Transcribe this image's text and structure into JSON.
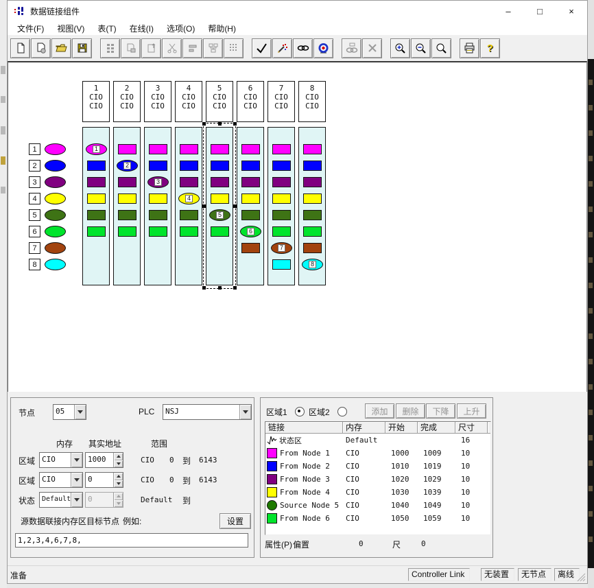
{
  "window": {
    "title": "数据链接组件",
    "minimize": "–",
    "maximize": "□",
    "close": "×"
  },
  "menu": {
    "items": [
      {
        "name": "file",
        "label": "文件(F)"
      },
      {
        "name": "view",
        "label": "视图(V)"
      },
      {
        "name": "table",
        "label": "表(T)"
      },
      {
        "name": "online",
        "label": "在线(I)"
      },
      {
        "name": "options",
        "label": "选项(O)"
      },
      {
        "name": "help",
        "label": "帮助(H)"
      }
    ]
  },
  "toolbar": {
    "icons": [
      "new-file",
      "report-page",
      "open-folder",
      "save",
      "datalink-table",
      "paste-table",
      "export-table",
      "cut",
      "merge-rows",
      "node-tree",
      "grid",
      "validate-check",
      "wizard",
      "auto-setup-link",
      "online-target",
      "manual-link",
      "delete",
      "zoom-in",
      "zoom-out",
      "zoom",
      "print",
      "help"
    ]
  },
  "canvas": {
    "row_colors": {
      "1": "#ff00ff",
      "2": "#0000ff",
      "3": "#800080",
      "4": "#ffff00",
      "5": "#3e7315",
      "6": "#00e42c",
      "7": "#a2430e",
      "8": "#00ffff"
    },
    "legend": [
      {
        "num": "1"
      },
      {
        "num": "2"
      },
      {
        "num": "3"
      },
      {
        "num": "4"
      },
      {
        "num": "5"
      },
      {
        "num": "6"
      },
      {
        "num": "7"
      },
      {
        "num": "8"
      }
    ],
    "columns": [
      {
        "num": "1",
        "mem1": "CIO",
        "mem2": "CIO",
        "rows": [
          1,
          2,
          3,
          4,
          5,
          6
        ],
        "own": 1,
        "selected": false
      },
      {
        "num": "2",
        "mem1": "CIO",
        "mem2": "CIO",
        "rows": [
          1,
          2,
          3,
          4,
          5,
          6
        ],
        "own": 2,
        "selected": false
      },
      {
        "num": "3",
        "mem1": "CIO",
        "mem2": "CIO",
        "rows": [
          1,
          2,
          3,
          4,
          5,
          6
        ],
        "own": 3,
        "selected": false
      },
      {
        "num": "4",
        "mem1": "CIO",
        "mem2": "CIO",
        "rows": [
          1,
          2,
          3,
          4,
          5,
          6
        ],
        "own": 4,
        "selected": false
      },
      {
        "num": "5",
        "mem1": "CIO",
        "mem2": "CIO",
        "rows": [
          1,
          2,
          3,
          4,
          5,
          6
        ],
        "own": 5,
        "selected": true
      },
      {
        "num": "6",
        "mem1": "CIO",
        "mem2": "CIO",
        "rows": [
          1,
          2,
          3,
          4,
          5,
          6,
          7
        ],
        "own": 6,
        "selected": false
      },
      {
        "num": "7",
        "mem1": "CIO",
        "mem2": "CIO",
        "rows": [
          1,
          2,
          3,
          4,
          5,
          6,
          7,
          8
        ],
        "own": 7,
        "selected": false
      },
      {
        "num": "8",
        "mem1": "CIO",
        "mem2": "CIO",
        "rows": [
          1,
          2,
          3,
          4,
          5,
          6,
          7,
          8
        ],
        "own": 8,
        "selected": false
      }
    ]
  },
  "left_panel": {
    "node_label": "节点",
    "node_value": "05",
    "plc_label": "PLC",
    "plc_value": "NSJ",
    "headers": {
      "memory": "内存",
      "address": "其实地址",
      "range": "范围"
    },
    "rows": [
      {
        "label": "区域",
        "memory": "CIO",
        "value": "1000",
        "range_mem": "CIO",
        "range_from": "0",
        "to_label": "到",
        "range_to": "6143"
      },
      {
        "label": "区域",
        "memory": "CIO",
        "value": "0",
        "range_mem": "CIO",
        "range_from": "0",
        "to_label": "到",
        "range_to": "6143"
      },
      {
        "label": "状态",
        "memory": "Default",
        "value": "0",
        "range_mem": "Default",
        "range_from": "",
        "to_label": "到",
        "range_to": ""
      }
    ],
    "target_label": "源数据联接内存区目标节点",
    "example_label": "例如:",
    "set_button": "设置",
    "target_value": "1,2,3,4,6,7,8,"
  },
  "right_panel": {
    "area1_label": "区域1",
    "area2_label": "区域2",
    "buttons": [
      {
        "name": "add",
        "label": "添加"
      },
      {
        "name": "delete",
        "label": "删除"
      },
      {
        "name": "move-down",
        "label": "下降"
      },
      {
        "name": "move-up",
        "label": "上升"
      }
    ],
    "table": {
      "headers": [
        "链接",
        "内存",
        "开始",
        "完成",
        "尺寸"
      ],
      "rows": [
        {
          "icon": "waveform",
          "color": "",
          "link": "状态区",
          "memory": "Default",
          "start": "",
          "end": "",
          "size": "16"
        },
        {
          "icon": "square",
          "color": "#ff00ff",
          "link": "From Node 1",
          "memory": "CIO",
          "start": "1000",
          "end": "1009",
          "size": "10"
        },
        {
          "icon": "square",
          "color": "#0000ff",
          "link": "From Node 2",
          "memory": "CIO",
          "start": "1010",
          "end": "1019",
          "size": "10"
        },
        {
          "icon": "square",
          "color": "#800080",
          "link": "From Node 3",
          "memory": "CIO",
          "start": "1020",
          "end": "1029",
          "size": "10"
        },
        {
          "icon": "square",
          "color": "#ffff00",
          "link": "From Node 4",
          "memory": "CIO",
          "start": "1030",
          "end": "1039",
          "size": "10"
        },
        {
          "icon": "circle",
          "color": "#1e7a00",
          "link": "Source Node 5",
          "memory": "CIO",
          "start": "1040",
          "end": "1049",
          "size": "10"
        },
        {
          "icon": "square",
          "color": "#00e42c",
          "link": "From Node 6",
          "memory": "CIO",
          "start": "1050",
          "end": "1059",
          "size": "10"
        }
      ]
    },
    "footer": {
      "prop_label": "属性(P)",
      "offset_label": "偏置",
      "offset_value": "0",
      "size_label": "尺",
      "size_value": "0"
    }
  },
  "statusbar": {
    "ready": "准备",
    "panels": [
      {
        "name": "network",
        "label": "Controller Link"
      },
      {
        "name": "unit",
        "label": "无装置"
      },
      {
        "name": "node",
        "label": "无节点"
      },
      {
        "name": "connection",
        "label": "离线"
      }
    ]
  }
}
